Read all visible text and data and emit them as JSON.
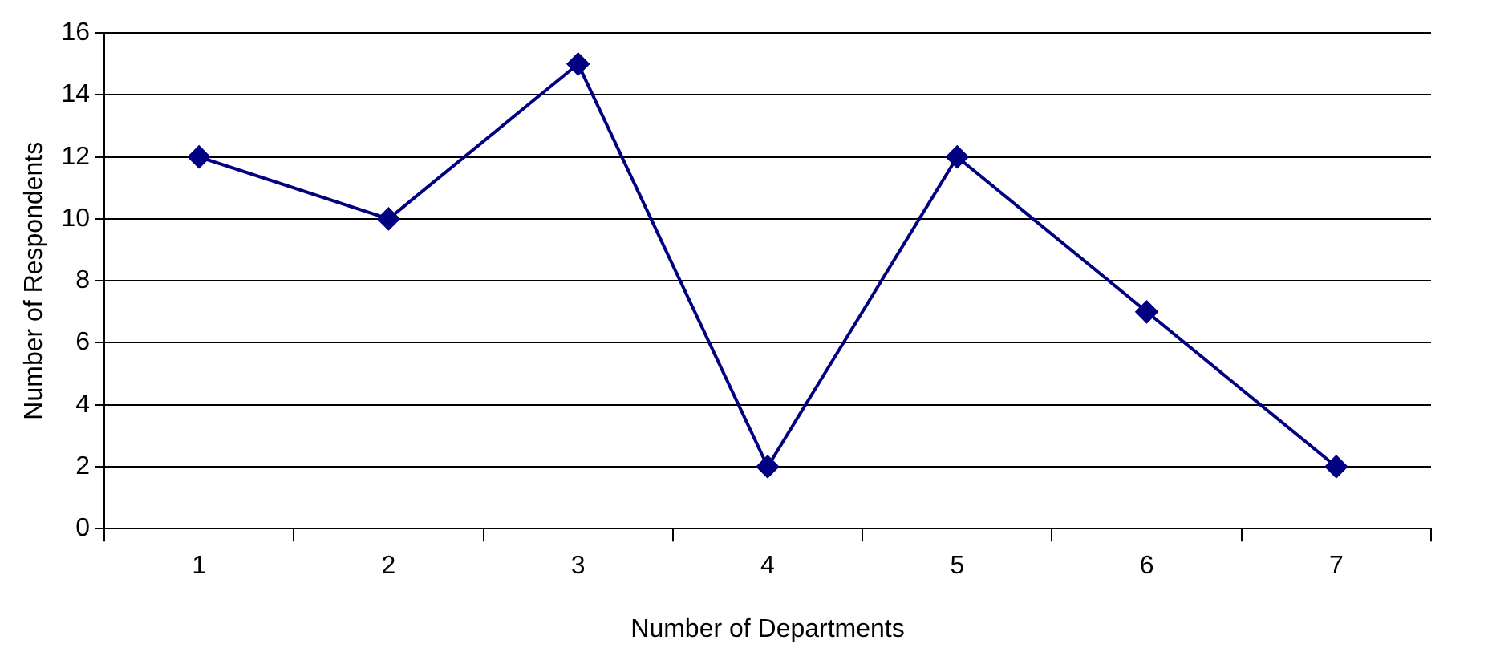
{
  "chart_data": {
    "type": "line",
    "xlabel": "Number of Departments",
    "ylabel": "Number of Respondents",
    "categories": [
      "1",
      "2",
      "3",
      "4",
      "5",
      "6",
      "7"
    ],
    "series": [
      {
        "color": "#000080",
        "values": [
          12,
          10,
          15,
          2,
          12,
          7,
          2
        ]
      }
    ],
    "ylim": [
      0,
      16
    ],
    "yticks": [
      0,
      2,
      4,
      6,
      8,
      10,
      12,
      14,
      16
    ],
    "grid": "y",
    "legend": false,
    "marker": "diamond",
    "line_style": "solid"
  }
}
